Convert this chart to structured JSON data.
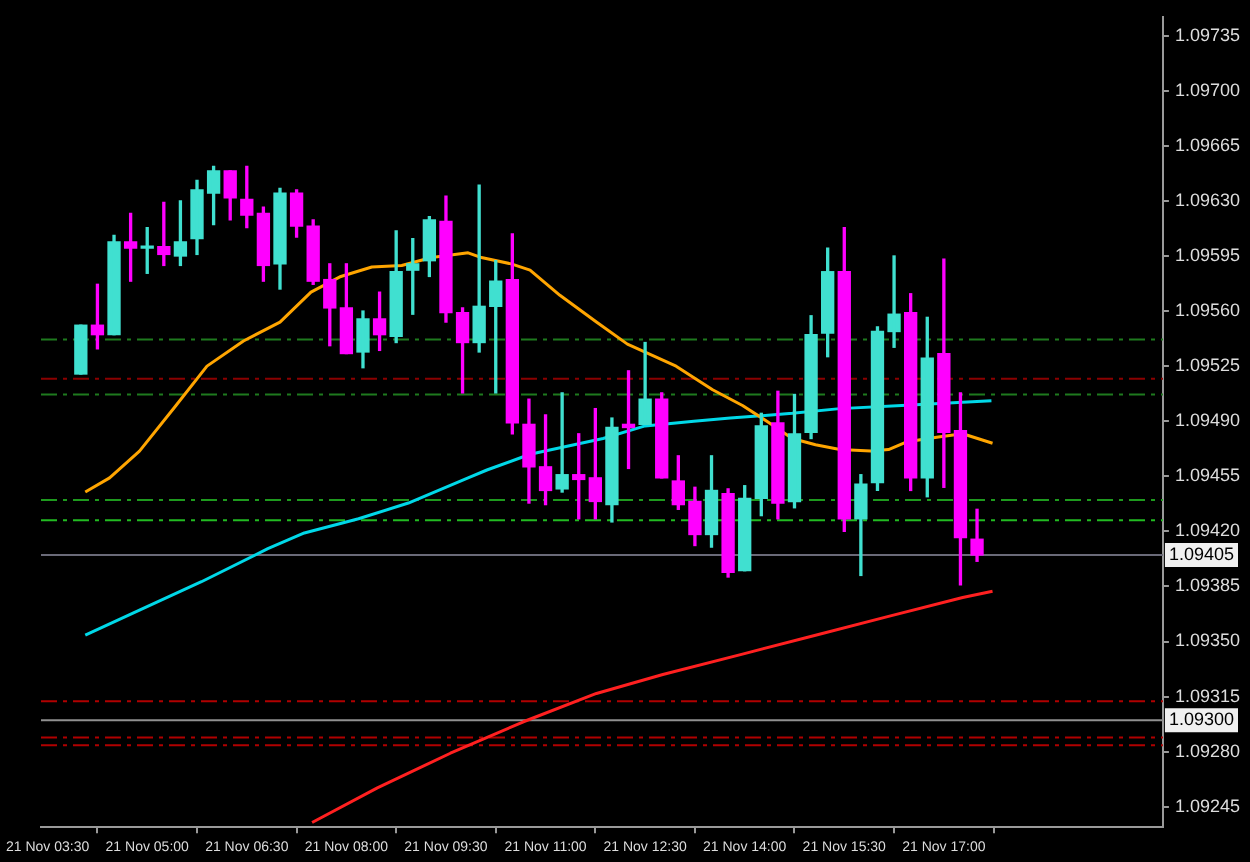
{
  "chart_data": {
    "type": "candlestick",
    "x": [
      "--11-21T04:00",
      "--11-21T04:15",
      "--11-21T04:30",
      "--11-21T04:45",
      "--11-21T05:00",
      "--11-21T05:15",
      "--11-21T05:30",
      "--11-21T05:45",
      "--11-21T06:00",
      "--11-21T06:15",
      "--11-21T06:30",
      "--11-21T06:45",
      "--11-21T07:00",
      "--11-21T07:15",
      "--11-21T07:30",
      "--11-21T07:45",
      "--11-21T08:00",
      "--11-21T08:15",
      "--11-21T08:30",
      "--11-21T08:45",
      "--11-21T09:00",
      "--11-21T09:15",
      "--11-21T09:30",
      "--11-21T09:45",
      "--11-21T10:00",
      "--11-21T10:15",
      "--11-21T10:30",
      "--11-21T10:45",
      "--11-21T11:00",
      "--11-21T11:15",
      "--11-21T11:30",
      "--11-21T11:45",
      "--11-21T12:00",
      "--11-21T12:15",
      "--11-21T12:30",
      "--11-21T12:45",
      "--11-21T13:00",
      "--11-21T13:15",
      "--11-21T13:30",
      "--11-21T13:45",
      "--11-21T14:00",
      "--11-21T14:15",
      "--11-21T14:30",
      "--11-21T14:45",
      "--11-21T15:00",
      "--11-21T15:15",
      "--11-21T15:30",
      "--11-21T15:45",
      "--11-21T16:00",
      "--11-21T16:15",
      "--11-21T16:30",
      "--11-21T16:45",
      "--11-21T17:00",
      "--11-21T17:15",
      "--11-21T17:30"
    ],
    "ohlc": [
      [
        1.0952,
        1.09551,
        1.0952,
        1.09551
      ],
      [
        1.09551,
        1.09577,
        1.09536,
        1.09545
      ],
      [
        1.09545,
        1.09608,
        1.09545,
        1.09604
      ],
      [
        1.09604,
        1.09622,
        1.09579,
        1.096
      ],
      [
        1.096,
        1.09613,
        1.09584,
        1.09601
      ],
      [
        1.09601,
        1.09629,
        1.09589,
        1.09596
      ],
      [
        1.09595,
        1.0963,
        1.09589,
        1.09604
      ],
      [
        1.09606,
        1.09643,
        1.09596,
        1.09637
      ],
      [
        1.09635,
        1.09652,
        1.09615,
        1.09649
      ],
      [
        1.09649,
        1.09649,
        1.09618,
        1.09632
      ],
      [
        1.09631,
        1.09652,
        1.09613,
        1.09621
      ],
      [
        1.09622,
        1.09626,
        1.09579,
        1.09589
      ],
      [
        1.0959,
        1.09638,
        1.09574,
        1.09635
      ],
      [
        1.09635,
        1.09637,
        1.09607,
        1.09614
      ],
      [
        1.09614,
        1.09618,
        1.09577,
        1.09579
      ],
      [
        1.0958,
        1.0959,
        1.09538,
        1.09562
      ],
      [
        1.09562,
        1.0959,
        1.09533,
        1.09533
      ],
      [
        1.09534,
        1.0956,
        1.09524,
        1.09555
      ],
      [
        1.09555,
        1.09572,
        1.09535,
        1.09545
      ],
      [
        1.09544,
        1.09611,
        1.0954,
        1.09585
      ],
      [
        1.09586,
        1.09606,
        1.09558,
        1.0959
      ],
      [
        1.09592,
        1.0962,
        1.09582,
        1.09618
      ],
      [
        1.09617,
        1.09633,
        1.09553,
        1.09559
      ],
      [
        1.09559,
        1.09562,
        1.09508,
        1.0954
      ],
      [
        1.0954,
        1.0964,
        1.09534,
        1.09563
      ],
      [
        1.09563,
        1.09592,
        1.09508,
        1.09579
      ],
      [
        1.0958,
        1.09609,
        1.09482,
        1.09489
      ],
      [
        1.09488,
        1.09504,
        1.09438,
        1.09461
      ],
      [
        1.09461,
        1.09494,
        1.09437,
        1.09446
      ],
      [
        1.09447,
        1.09508,
        1.09445,
        1.09456
      ],
      [
        1.09456,
        1.09482,
        1.09428,
        1.09453
      ],
      [
        1.09454,
        1.09498,
        1.09428,
        1.09439
      ],
      [
        1.09437,
        1.09492,
        1.09426,
        1.09486
      ],
      [
        1.09488,
        1.09522,
        1.0946,
        1.09486
      ],
      [
        1.09488,
        1.0954,
        1.09488,
        1.09504
      ],
      [
        1.09504,
        1.09508,
        1.09454,
        1.09454
      ],
      [
        1.09452,
        1.09468,
        1.09434,
        1.09437
      ],
      [
        1.09439,
        1.09448,
        1.09411,
        1.09418
      ],
      [
        1.09418,
        1.09468,
        1.0941,
        1.09446
      ],
      [
        1.09444,
        1.09447,
        1.09391,
        1.09394
      ],
      [
        1.09395,
        1.09449,
        1.09395,
        1.09441
      ],
      [
        1.09441,
        1.09495,
        1.0943,
        1.09487
      ],
      [
        1.09489,
        1.09509,
        1.09428,
        1.09438
      ],
      [
        1.09439,
        1.09507,
        1.09435,
        1.09482
      ],
      [
        1.09483,
        1.09557,
        1.09479,
        1.09545
      ],
      [
        1.09546,
        1.096,
        1.09531,
        1.09585
      ],
      [
        1.09585,
        1.09613,
        1.0942,
        1.09428
      ],
      [
        1.09428,
        1.09456,
        1.09392,
        1.0945
      ],
      [
        1.09451,
        1.0955,
        1.09446,
        1.09547
      ],
      [
        1.09547,
        1.09595,
        1.09537,
        1.09558
      ],
      [
        1.09559,
        1.09571,
        1.09446,
        1.09454
      ],
      [
        1.09454,
        1.09556,
        1.09442,
        1.0953
      ],
      [
        1.09533,
        1.09593,
        1.09448,
        1.09483
      ],
      [
        1.09484,
        1.09508,
        1.09386,
        1.09416
      ],
      [
        1.09415,
        1.09434,
        1.09401,
        1.09405
      ]
    ],
    "colors": [
      "#40e0d0",
      "#ff00ff",
      "#40e0d0",
      "#ff00ff",
      "#40e0d0",
      "#ff00ff",
      "#40e0d0",
      "#40e0d0",
      "#40e0d0",
      "#ff00ff",
      "#ff00ff",
      "#ff00ff",
      "#40e0d0",
      "#ff00ff",
      "#ff00ff",
      "#ff00ff",
      "#ff00ff",
      "#40e0d0",
      "#ff00ff",
      "#40e0d0",
      "#40e0d0",
      "#40e0d0",
      "#ff00ff",
      "#ff00ff",
      "#40e0d0",
      "#40e0d0",
      "#ff00ff",
      "#ff00ff",
      "#ff00ff",
      "#40e0d0",
      "#ff00ff",
      "#ff00ff",
      "#40e0d0",
      "#ff00ff",
      "#40e0d0",
      "#ff00ff",
      "#ff00ff",
      "#ff00ff",
      "#40e0d0",
      "#ff00ff",
      "#40e0d0",
      "#40e0d0",
      "#ff00ff",
      "#40e0d0",
      "#40e0d0",
      "#40e0d0",
      "#ff00ff",
      "#40e0d0",
      "#40e0d0",
      "#40e0d0",
      "#ff00ff",
      "#40e0d0",
      "#ff00ff",
      "#ff00ff",
      "#ff00ff"
    ],
    "series": [
      {
        "type": "line",
        "color": "#ffa500",
        "x": [
          "--11-21T04:04",
          "--11-21T04:26",
          "--11-21T04:53",
          "--11-21T05:26",
          "--11-21T05:54",
          "--11-21T06:27",
          "--11-21T07:00",
          "--11-21T07:28",
          "--11-21T07:55",
          "--11-21T08:23",
          "--11-21T08:50",
          "--11-21T09:17",
          "--11-21T09:50",
          "--11-21T10:02",
          "--11-21T10:29",
          "--11-21T10:46",
          "--11-21T11:13",
          "--11-21T11:46",
          "--11-21T12:14",
          "--11-21T12:58",
          "--11-21T13:31",
          "--11-21T13:58",
          "--11-21T14:20",
          "--11-21T14:43",
          "--11-21T15:04",
          "--11-21T15:26",
          "--11-21T15:54",
          "--11-21T16:10",
          "--11-21T16:27",
          "--11-21T16:55",
          "--11-21T17:17",
          "--11-21T17:44"
        ],
        "values": [
          1.09445,
          1.09454,
          1.09471,
          1.095,
          1.09525,
          1.09541,
          1.09553,
          1.09572,
          1.09582,
          1.09588,
          1.09589,
          1.09594,
          1.09597,
          1.09594,
          1.0959,
          1.09586,
          1.0957,
          1.09553,
          1.09539,
          1.09525,
          1.0951,
          1.095,
          1.0949,
          1.09479,
          1.09475,
          1.09472,
          1.09471,
          1.09472,
          1.09477,
          1.0948,
          1.09482,
          1.09476
        ]
      },
      {
        "type": "line",
        "color": "#00d8e8",
        "x": [
          "--11-21T04:04",
          "--11-21T04:53",
          "--11-21T05:49",
          "--11-21T06:49",
          "--11-21T07:22",
          "--11-21T08:11",
          "--11-21T08:56",
          "--11-21T09:50",
          "--11-21T10:07",
          "--11-21T10:46",
          "--11-21T11:52",
          "--11-21T12:30",
          "--11-21T13:14",
          "--11-21T13:47",
          "--11-21T14:43",
          "--11-21T15:26",
          "--11-21T16:22",
          "--11-21T17:17",
          "--11-21T17:43"
        ],
        "values": [
          1.09354,
          1.0937,
          1.09388,
          1.09409,
          1.09419,
          1.09428,
          1.09438,
          1.09454,
          1.09459,
          1.09469,
          1.09479,
          1.09487,
          1.0949,
          1.09492,
          1.09495,
          1.09498,
          1.095,
          1.09502,
          1.09503
        ]
      },
      {
        "type": "line",
        "color": "#ff2020",
        "x": [
          "--11-21T07:29",
          "--11-21T08:28",
          "--11-21T09:34",
          "--11-21T10:40",
          "--11-21T11:46",
          "--11-21T12:46",
          "--11-21T13:58",
          "--11-21T15:04",
          "--11-21T16:10",
          "--11-21T17:17",
          "--11-21T17:44"
        ],
        "values": [
          1.09235,
          1.09257,
          1.09279,
          1.09299,
          1.09317,
          1.09329,
          1.09342,
          1.09354,
          1.09366,
          1.09378,
          1.09382
        ]
      }
    ],
    "ref_lines": [
      {
        "axis": "y",
        "value": 1.09542,
        "color": "#1e7a1e",
        "line_style": "dashed"
      },
      {
        "axis": "y",
        "value": 1.09517,
        "color": "#8b0000",
        "line_style": "dashed"
      },
      {
        "axis": "y",
        "value": 1.09507,
        "color": "#1e7a1e",
        "line_style": "dashed"
      },
      {
        "axis": "y",
        "value": 1.0944,
        "color": "#1e9a1e",
        "line_style": "dashed"
      },
      {
        "axis": "y",
        "value": 1.09427,
        "color": "#22bb22",
        "line_style": "dashed"
      },
      {
        "axis": "y",
        "value": 1.09405,
        "label": "1.09405",
        "color": "#6a6a78",
        "line_style": "solid"
      },
      {
        "axis": "y",
        "value": 1.09312,
        "color": "#b00000",
        "line_style": "dashed"
      },
      {
        "axis": "y",
        "value": 1.093,
        "label": "1.09300",
        "color": "#909090",
        "line_style": "solid"
      },
      {
        "axis": "y",
        "value": 1.09289,
        "color": "#b00000",
        "line_style": "dashed"
      },
      {
        "axis": "y",
        "value": 1.09284,
        "color": "#b00000",
        "line_style": "dashed"
      }
    ],
    "xlim": [
      "--11-21T03:24",
      "--11-21T20:18"
    ],
    "xticks": [
      {
        "value": "--11-21T03:30",
        "label": "21 Nov 03:30"
      },
      {
        "value": "--11-21T05:00",
        "label": "21 Nov 05:00"
      },
      {
        "value": "--11-21T06:30",
        "label": "21 Nov 06:30"
      },
      {
        "value": "--11-21T08:00",
        "label": "21 Nov 08:00"
      },
      {
        "value": "--11-21T09:30",
        "label": "21 Nov 09:30"
      },
      {
        "value": "--11-21T11:00",
        "label": "21 Nov 11:00"
      },
      {
        "value": "--11-21T12:30",
        "label": "21 Nov 12:30"
      },
      {
        "value": "--11-21T14:00",
        "label": "21 Nov 14:00"
      },
      {
        "value": "--11-21T15:30",
        "label": "21 Nov 15:30"
      },
      {
        "value": "--11-21T17:00",
        "label": "21 Nov 17:00"
      }
    ],
    "ylim": [
      1.09232,
      1.09747
    ],
    "yticks": [
      1.09735,
      {
        "value": 1.097,
        "label": "1.09700"
      },
      1.09665,
      {
        "value": 1.0963,
        "label": "1.09630"
      },
      1.09595,
      {
        "value": 1.0956,
        "label": "1.09560"
      },
      1.09525,
      {
        "value": 1.0949,
        "label": "1.09490"
      },
      1.09455,
      {
        "value": 1.0942,
        "label": "1.09420"
      },
      1.09385,
      {
        "value": 1.0935,
        "label": "1.09350"
      },
      1.09315,
      {
        "value": 1.0928,
        "label": "1.09280"
      },
      1.09245
    ]
  }
}
